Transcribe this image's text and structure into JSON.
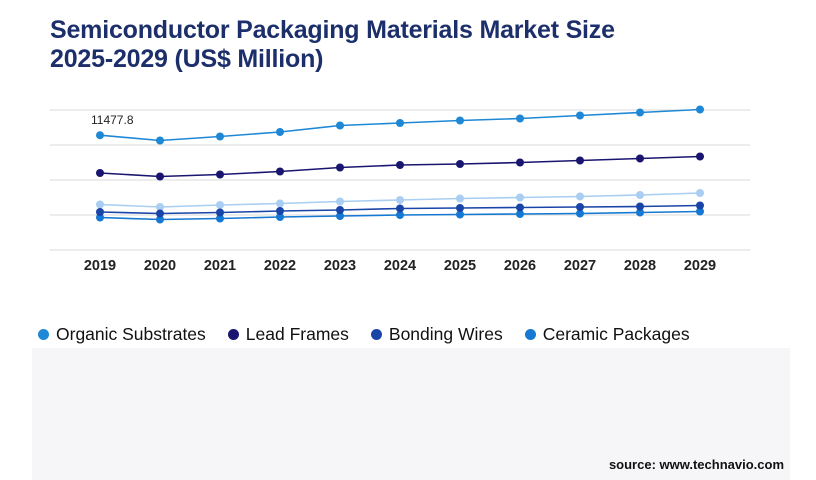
{
  "title_lines": [
    "Semiconductor Packaging Materials Market Size",
    "2025-2029 (US$ Million)"
  ],
  "source": "source: www.technavio.com",
  "chart_data": {
    "type": "line",
    "x": [
      "2019",
      "2020",
      "2021",
      "2022",
      "2023",
      "2024",
      "2025",
      "2026",
      "2027",
      "2028",
      "2029"
    ],
    "ylim": [
      0,
      14000
    ],
    "grid": true,
    "legend_position": "bottom",
    "annotations": [
      {
        "series": "Organic Substrates",
        "x": "2019",
        "text": "11477.8"
      }
    ],
    "series": [
      {
        "name": "Organic Substrates",
        "color": "#1e88d6",
        "values": [
          11477.8,
          10950,
          11350,
          11800,
          12450,
          12700,
          12950,
          13150,
          13450,
          13750,
          14050
        ]
      },
      {
        "name": "Lead Frames",
        "color": "#1a1670",
        "values": [
          7700,
          7350,
          7550,
          7850,
          8250,
          8500,
          8600,
          8750,
          8950,
          9150,
          9350
        ]
      },
      {
        "name": "Bonding Wires",
        "color": "#1a45a8",
        "values": [
          3800,
          3650,
          3750,
          3900,
          4000,
          4150,
          4200,
          4250,
          4300,
          4350,
          4450
        ]
      },
      {
        "name": "Ceramic Packages",
        "color": "#1578d2",
        "values": [
          3250,
          3050,
          3150,
          3300,
          3400,
          3500,
          3550,
          3600,
          3650,
          3750,
          3850
        ]
      }
    ],
    "extra_series_color": "#a9cef2",
    "extra_series_values": [
      4550,
      4300,
      4500,
      4650,
      4850,
      5000,
      5150,
      5250,
      5350,
      5500,
      5700
    ]
  }
}
